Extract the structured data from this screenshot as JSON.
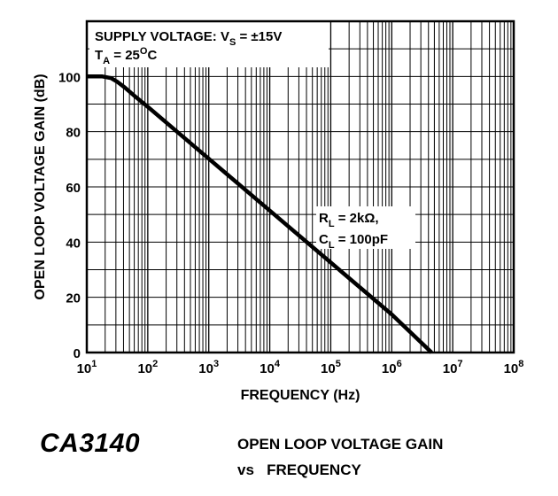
{
  "chart_data": {
    "type": "line",
    "xlabel": "FREQUENCY (Hz)",
    "ylabel": "OPEN LOOP VOLTAGE GAIN (dB)",
    "x_scale": "log",
    "xlim": [
      10,
      100000000
    ],
    "ylim": [
      0,
      120
    ],
    "x_ticks": [
      {
        "value": 10,
        "base": "10",
        "exp": "1"
      },
      {
        "value": 100,
        "base": "10",
        "exp": "2"
      },
      {
        "value": 1000,
        "base": "10",
        "exp": "3"
      },
      {
        "value": 10000,
        "base": "10",
        "exp": "4"
      },
      {
        "value": 100000,
        "base": "10",
        "exp": "5"
      },
      {
        "value": 1000000,
        "base": "10",
        "exp": "6"
      },
      {
        "value": 10000000,
        "base": "10",
        "exp": "7"
      },
      {
        "value": 100000000,
        "base": "10",
        "exp": "8"
      }
    ],
    "y_ticks": [
      0,
      20,
      40,
      60,
      80,
      100
    ],
    "grid": true,
    "series": [
      {
        "color": "#000000",
        "points": [
          {
            "x": 10,
            "y": 100
          },
          {
            "x": 18,
            "y": 100
          },
          {
            "x": 25,
            "y": 99.4
          },
          {
            "x": 32,
            "y": 98
          },
          {
            "x": 42,
            "y": 96
          },
          {
            "x": 60,
            "y": 93
          },
          {
            "x": 100,
            "y": 89
          },
          {
            "x": 1000,
            "y": 70.2
          },
          {
            "x": 10000,
            "y": 51.4
          },
          {
            "x": 100000,
            "y": 32.6
          },
          {
            "x": 1000000,
            "y": 13.8
          },
          {
            "x": 4500000,
            "y": 0
          }
        ]
      }
    ],
    "annotations": {
      "conditions": {
        "line1_prefix": "SUPPLY VOLTAGE:  V",
        "line1_sub": "S",
        "line1_suffix": " = ±15V",
        "line2_prefix": "T",
        "line2_sub": "A",
        "line2_mid": " = 25",
        "line2_sup": "O",
        "line2_suffix": "C"
      },
      "load": {
        "line1_prefix": "R",
        "line1_sub": "L",
        "line1_suffix": " = 2kΩ,",
        "line2_prefix": "C",
        "line2_sub": "L",
        "line2_suffix": " = 100pF"
      }
    }
  },
  "caption": {
    "part_number": "CA3140",
    "title_line1": "OPEN LOOP VOLTAGE GAIN",
    "title_line2": "vs   FREQUENCY"
  }
}
